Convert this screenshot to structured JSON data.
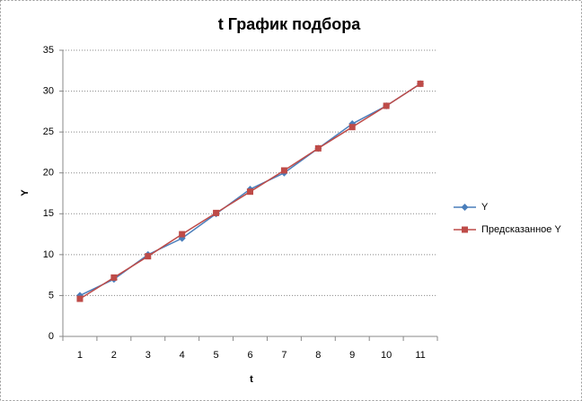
{
  "chart_data": {
    "type": "line",
    "title": "t График подбора",
    "x_label": "t",
    "y_label": "Y",
    "categories": [
      "1",
      "2",
      "3",
      "4",
      "5",
      "6",
      "7",
      "8",
      "9",
      "10",
      "11"
    ],
    "series": [
      {
        "name": "Y",
        "color": "#4a7ebb",
        "marker": "diamond",
        "values": [
          5,
          7,
          10,
          12,
          15,
          18,
          20,
          23,
          26,
          28.2,
          30.9
        ]
      },
      {
        "name": "Предсказанное Y",
        "color": "#be4b48",
        "marker": "square",
        "values": [
          4.6,
          7.2,
          9.8,
          12.5,
          15.1,
          17.7,
          20.3,
          23,
          25.6,
          28.2,
          30.9
        ]
      }
    ],
    "ylim": [
      0,
      35
    ],
    "yticks": [
      0,
      5,
      10,
      15,
      20,
      25,
      30,
      35
    ],
    "grid": true,
    "legend": "right"
  }
}
